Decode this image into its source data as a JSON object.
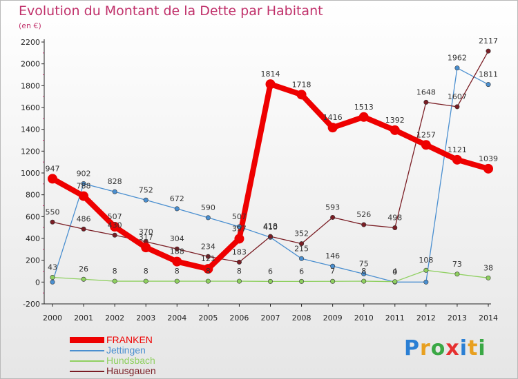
{
  "chart_data": {
    "type": "line",
    "title": "Evolution du Montant de la Dette par Habitant",
    "unit": "(en €)",
    "x": [
      "2000",
      "2001",
      "2002",
      "2003",
      "2004",
      "2005",
      "2006",
      "2007",
      "2008",
      "2009",
      "2010",
      "2011",
      "2012",
      "2013",
      "2014"
    ],
    "ylim": [
      -200,
      2200
    ],
    "yticks": [
      "-200",
      "0",
      "200",
      "400",
      "600",
      "800",
      "1000",
      "1200",
      "1400",
      "1600",
      "1800",
      "2000",
      "2200"
    ],
    "grid": false,
    "legend_position": "bottom-left",
    "series": [
      {
        "name": "FRANKEN",
        "color": "#ee0000",
        "values": [
          947,
          788,
          507,
          317,
          188,
          121,
          397,
          1814,
          1718,
          1416,
          1513,
          1392,
          1257,
          1121,
          1039
        ]
      },
      {
        "name": "Jettingen",
        "color": "#4a8fd0",
        "values": [
          0,
          902,
          828,
          752,
          672,
          590,
          507,
          410,
          215,
          146,
          75,
          0,
          0,
          1962,
          1811
        ]
      },
      {
        "name": "Hundsbach",
        "color": "#8fd060",
        "values": [
          43,
          26,
          8,
          8,
          8,
          8,
          8,
          6,
          6,
          7,
          8,
          4,
          108,
          73,
          38
        ]
      },
      {
        "name": "Hausgauen",
        "color": "#7a1d24",
        "values": [
          550,
          486,
          430,
          370,
          304,
          234,
          183,
          418,
          352,
          593,
          526,
          498,
          1648,
          1607,
          2117
        ]
      }
    ],
    "data_labels": [
      {
        "series": 0,
        "values": [
          "947",
          "788",
          "507",
          "317",
          "188",
          "121",
          "397",
          "1814",
          "1718",
          "1416",
          "1513",
          "1392",
          "1257",
          "1121",
          "1039"
        ]
      },
      {
        "series": 1,
        "values": [
          "",
          "902",
          "828",
          "752",
          "672",
          "590",
          "507",
          "410",
          "215",
          "146",
          "75",
          "0",
          "",
          "1962",
          "1811"
        ]
      },
      {
        "series": 2,
        "values": [
          "43",
          "26",
          "8",
          "8",
          "8",
          "8",
          "8",
          "6",
          "6",
          "7",
          "8",
          "4",
          "108",
          "73",
          "38"
        ]
      },
      {
        "series": 3,
        "values": [
          "550",
          "486",
          "430",
          "370",
          "304",
          "234",
          "183",
          "418",
          "352",
          "593",
          "526",
          "498",
          "1648",
          "1607",
          "2117"
        ]
      }
    ]
  },
  "logo": {
    "letters": [
      "P",
      "r",
      "o",
      "x",
      "i",
      "t",
      "i"
    ],
    "colors": [
      "#2a7fd4",
      "#e8a020",
      "#3aa845",
      "#e63030",
      "#2a7fd4",
      "#e8a020",
      "#3aa845"
    ]
  }
}
